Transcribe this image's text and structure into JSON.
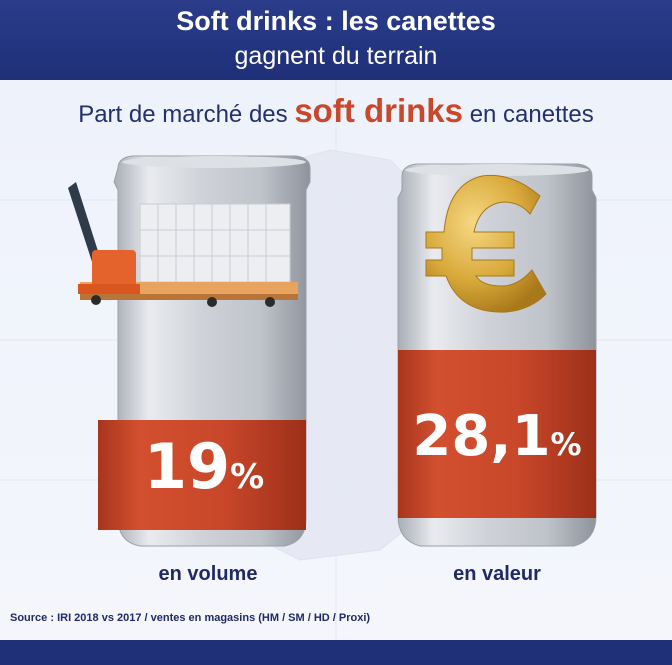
{
  "header": {
    "title": "Soft drinks : les canettes",
    "subtitle": "gagnent du terrain"
  },
  "subtitle": {
    "prefix": "Part de marché des",
    "highlight": "soft drinks",
    "suffix": "en canettes"
  },
  "chart_data": {
    "type": "table",
    "title": "Part de marché des soft drinks en canettes",
    "unit": "%",
    "items": [
      {
        "label": "en volume",
        "display_value": "19",
        "value": 19,
        "icon": "pallet-truck-icon"
      },
      {
        "label": "en valeur",
        "display_value": "28,1",
        "value": 28.1,
        "icon": "euro-coin-icon"
      }
    ],
    "colors": {
      "band": "#c9472a",
      "can_silver": "#cfd2d8",
      "title_bar": "#24358a",
      "text": "#1f2a66"
    }
  },
  "source": "Source : IRI 2018 vs 2017 / ventes en magasins (HM / SM / HD / Proxi)"
}
